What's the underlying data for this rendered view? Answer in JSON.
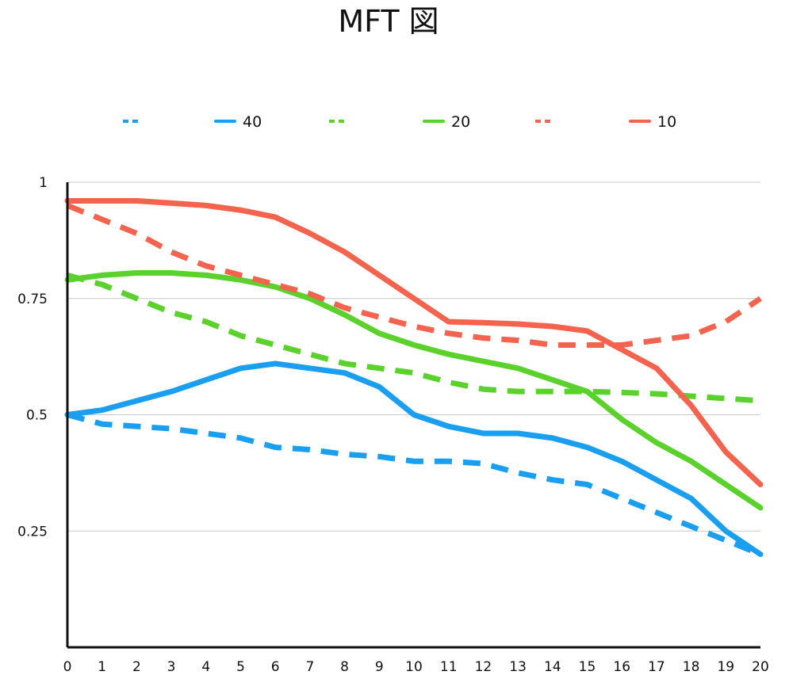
{
  "chart_data": {
    "type": "line",
    "title": "MFT 図",
    "xlabel": "",
    "ylabel": "",
    "x": [
      0,
      1,
      2,
      3,
      4,
      5,
      6,
      7,
      8,
      9,
      10,
      11,
      12,
      13,
      14,
      15,
      16,
      17,
      18,
      19,
      20
    ],
    "xlim": [
      0,
      20
    ],
    "ylim": [
      0,
      1
    ],
    "yticks": [
      0.25,
      0.5,
      0.75,
      1
    ],
    "ytick_labels": [
      "0.25",
      "0.5",
      "0.75",
      "1"
    ],
    "grid": true,
    "legend_position": "top",
    "series": [
      {
        "name": "",
        "color": "#1a9ff0",
        "style": "dashed",
        "values": [
          0.5,
          0.48,
          0.475,
          0.47,
          0.46,
          0.45,
          0.43,
          0.425,
          0.415,
          0.41,
          0.4,
          0.4,
          0.395,
          0.375,
          0.36,
          0.35,
          0.32,
          0.29,
          0.26,
          0.23,
          0.2
        ]
      },
      {
        "name": "40",
        "color": "#1a9ff0",
        "style": "solid",
        "values": [
          0.5,
          0.51,
          0.53,
          0.55,
          0.575,
          0.6,
          0.61,
          0.6,
          0.59,
          0.56,
          0.5,
          0.475,
          0.46,
          0.46,
          0.45,
          0.43,
          0.4,
          0.36,
          0.32,
          0.25,
          0.2
        ]
      },
      {
        "name": "",
        "color": "#5ad22b",
        "style": "dashed",
        "values": [
          0.8,
          0.78,
          0.75,
          0.72,
          0.7,
          0.67,
          0.65,
          0.63,
          0.61,
          0.6,
          0.59,
          0.57,
          0.555,
          0.55,
          0.55,
          0.55,
          0.548,
          0.545,
          0.54,
          0.535,
          0.53
        ]
      },
      {
        "name": "20",
        "color": "#5ad22b",
        "style": "solid",
        "values": [
          0.79,
          0.8,
          0.805,
          0.805,
          0.8,
          0.79,
          0.775,
          0.75,
          0.715,
          0.675,
          0.65,
          0.63,
          0.615,
          0.6,
          0.575,
          0.55,
          0.49,
          0.44,
          0.4,
          0.35,
          0.3
        ]
      },
      {
        "name": "",
        "color": "#f4634e",
        "style": "dashed",
        "values": [
          0.95,
          0.92,
          0.89,
          0.85,
          0.82,
          0.8,
          0.78,
          0.76,
          0.73,
          0.71,
          0.69,
          0.675,
          0.665,
          0.66,
          0.65,
          0.65,
          0.65,
          0.66,
          0.67,
          0.7,
          0.75
        ]
      },
      {
        "name": "10",
        "color": "#f4634e",
        "style": "solid",
        "values": [
          0.96,
          0.96,
          0.96,
          0.955,
          0.95,
          0.94,
          0.925,
          0.89,
          0.85,
          0.8,
          0.75,
          0.7,
          0.698,
          0.695,
          0.69,
          0.68,
          0.64,
          0.6,
          0.52,
          0.42,
          0.35
        ]
      }
    ]
  }
}
